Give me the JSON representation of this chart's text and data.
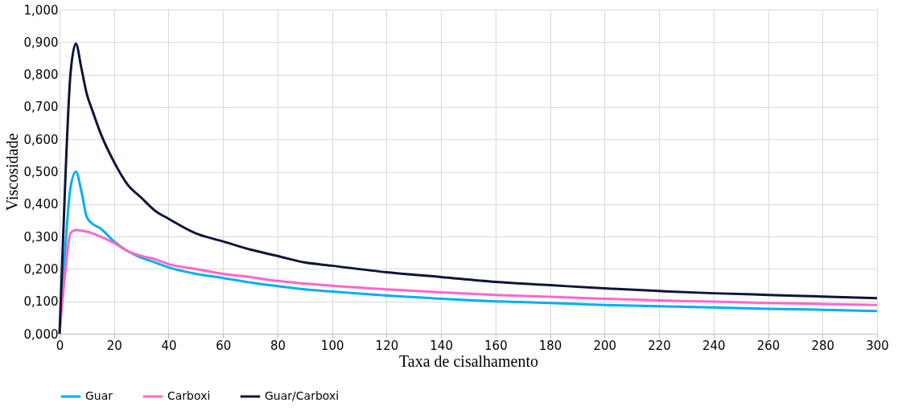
{
  "chart_data": {
    "type": "line",
    "xlabel": "Taxa de cisalhamento",
    "ylabel": "Viscosidade",
    "x": [
      0,
      2,
      4,
      6,
      8,
      10,
      12,
      15,
      20,
      25,
      30,
      35,
      40,
      50,
      60,
      70,
      80,
      90,
      100,
      120,
      140,
      160,
      180,
      200,
      220,
      240,
      260,
      280,
      300
    ],
    "series": [
      {
        "name": "Guar",
        "color": "#00b0f0",
        "values": [
          0,
          0.25,
          0.45,
          0.5,
          0.44,
          0.36,
          0.34,
          0.325,
          0.285,
          0.255,
          0.235,
          0.22,
          0.205,
          0.185,
          0.172,
          0.158,
          0.147,
          0.137,
          0.13,
          0.118,
          0.108,
          0.1,
          0.095,
          0.089,
          0.085,
          0.081,
          0.077,
          0.074,
          0.07
        ]
      },
      {
        "name": "Carboxi",
        "color": "#ff66cc",
        "values": [
          0,
          0.18,
          0.31,
          0.32,
          0.318,
          0.315,
          0.31,
          0.3,
          0.28,
          0.255,
          0.24,
          0.23,
          0.215,
          0.2,
          0.185,
          0.175,
          0.163,
          0.155,
          0.148,
          0.137,
          0.128,
          0.12,
          0.114,
          0.108,
          0.103,
          0.099,
          0.095,
          0.092,
          0.089
        ]
      },
      {
        "name": "Guar/Carboxi",
        "color": "#0d1538",
        "values": [
          0,
          0.45,
          0.8,
          0.895,
          0.82,
          0.74,
          0.69,
          0.62,
          0.53,
          0.46,
          0.42,
          0.38,
          0.355,
          0.31,
          0.285,
          0.26,
          0.24,
          0.22,
          0.21,
          0.19,
          0.175,
          0.16,
          0.15,
          0.14,
          0.132,
          0.125,
          0.12,
          0.115,
          0.11
        ]
      }
    ],
    "xlim": [
      0,
      300
    ],
    "xticks": [
      0,
      20,
      40,
      60,
      80,
      100,
      120,
      140,
      160,
      180,
      200,
      220,
      240,
      260,
      280,
      300
    ],
    "ylim": [
      0,
      1
    ],
    "yticks": [
      {
        "value": 0,
        "label": "0,000"
      },
      {
        "value": 0.1,
        "label": "0,100"
      },
      {
        "value": 0.2,
        "label": "0,200"
      },
      {
        "value": 0.3,
        "label": "0,300"
      },
      {
        "value": 0.4,
        "label": "0,400"
      },
      {
        "value": 0.5,
        "label": "0,500"
      },
      {
        "value": 0.6,
        "label": "0,600"
      },
      {
        "value": 0.7,
        "label": "0,700"
      },
      {
        "value": 0.8,
        "label": "0,800"
      },
      {
        "value": 0.9,
        "label": "0,900"
      },
      {
        "value": 1,
        "label": "1,000"
      }
    ],
    "grid": true,
    "legend": "bottom",
    "marker": "none",
    "line_style": "solid"
  }
}
